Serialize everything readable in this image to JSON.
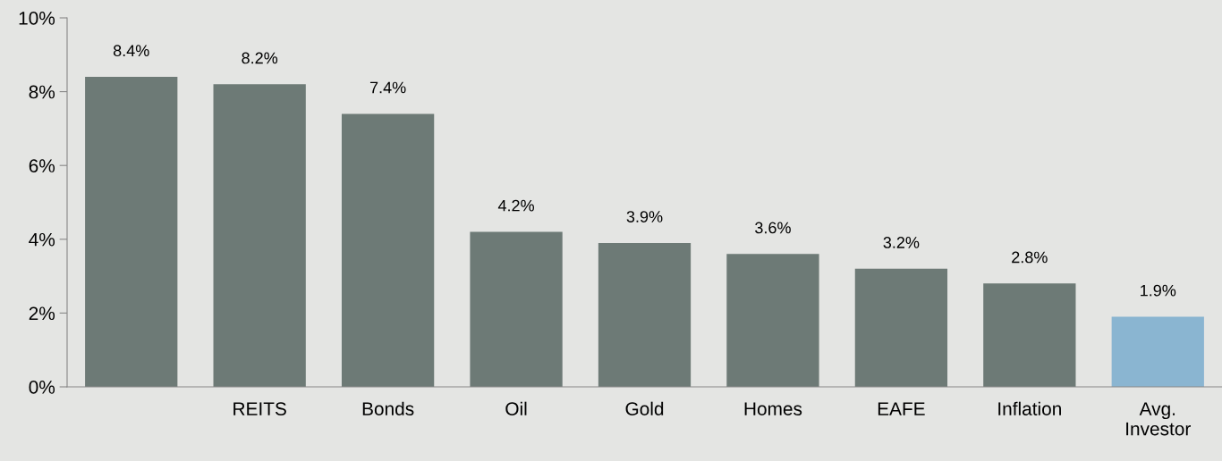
{
  "chart_data": {
    "type": "bar",
    "categories": [
      null,
      "REITS",
      "Bonds",
      "Oil",
      "Gold",
      "Homes",
      "EAFE",
      "Inflation",
      "Avg.\nInvestor"
    ],
    "values": [
      8.4,
      8.2,
      7.4,
      4.2,
      3.9,
      3.6,
      3.2,
      2.8,
      1.9
    ],
    "colors": [
      "#6d7a76",
      "#6d7a76",
      "#6d7a76",
      "#6d7a76",
      "#6d7a76",
      "#6d7a76",
      "#6d7a76",
      "#6d7a76",
      "#8ab5d1"
    ],
    "value_labels": [
      "8.4%",
      "8.2%",
      "7.4%",
      "4.2%",
      "3.9%",
      "3.6%",
      "3.2%",
      "2.8%",
      "1.9%"
    ],
    "ylim": [
      0,
      10
    ],
    "yticks": [
      {
        "value": 0,
        "label": "0%"
      },
      {
        "value": 2,
        "label": "2%"
      },
      {
        "value": 4,
        "label": "4%"
      },
      {
        "value": 6,
        "label": "6%"
      },
      {
        "value": 8,
        "label": "8%"
      },
      {
        "value": 10,
        "label": "10%"
      }
    ],
    "grid": false,
    "legend": false
  }
}
